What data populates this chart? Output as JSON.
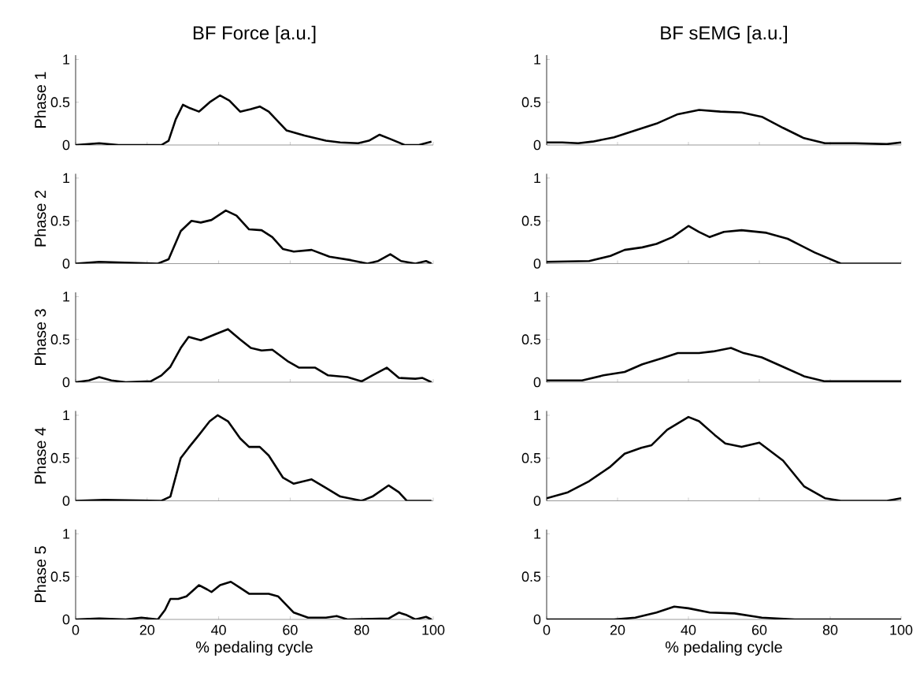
{
  "chart_data": [
    {
      "type": "line",
      "title": "BF Force [a.u.]",
      "ylabel": "Phase 1",
      "color": "#000000",
      "xlim": [
        0,
        100
      ],
      "ylim": [
        0,
        1.05
      ],
      "yticks": [
        0,
        0.5,
        1
      ],
      "tick_labels": "y",
      "x": [
        0,
        6.6,
        12,
        24,
        26,
        28,
        30,
        32,
        34.5,
        37.5,
        40.4,
        43,
        46,
        49,
        51.5,
        54,
        59,
        64,
        70,
        74,
        79,
        82,
        85,
        88,
        92,
        96,
        99.5
      ],
      "values": [
        0,
        0.02,
        0,
        0,
        0.05,
        0.3,
        0.47,
        0.43,
        0.39,
        0.5,
        0.58,
        0.52,
        0.39,
        0.42,
        0.45,
        0.39,
        0.17,
        0.11,
        0.05,
        0.03,
        0.02,
        0.05,
        0.12,
        0.07,
        0,
        0,
        0.04
      ]
    },
    {
      "type": "line",
      "title": "BF sEMG [a.u.]",
      "color": "#000000",
      "xlim": [
        0,
        100
      ],
      "ylim": [
        0,
        1.05
      ],
      "yticks": [
        0,
        0.5,
        1
      ],
      "tick_labels": "y",
      "x": [
        0,
        4.4,
        8.9,
        13,
        19,
        25,
        31,
        37,
        43,
        49,
        55,
        60.7,
        66.7,
        72.6,
        78.5,
        87,
        96,
        100
      ],
      "values": [
        0.03,
        0.03,
        0.02,
        0.04,
        0.09,
        0.17,
        0.25,
        0.36,
        0.41,
        0.39,
        0.38,
        0.33,
        0.2,
        0.08,
        0.02,
        0.02,
        0.01,
        0.03
      ]
    },
    {
      "type": "line",
      "ylabel": "Phase 2",
      "color": "#000000",
      "xlim": [
        0,
        100
      ],
      "ylim": [
        0,
        1.05
      ],
      "yticks": [
        0,
        0.5,
        1
      ],
      "tick_labels": "y",
      "x": [
        0,
        6.6,
        23,
        26,
        29.4,
        32.4,
        35,
        38,
        42,
        45,
        48.5,
        52,
        55,
        58,
        61,
        66,
        71,
        77,
        81.6,
        84.6,
        88,
        91,
        95,
        98,
        99.5
      ],
      "values": [
        0,
        0.02,
        0,
        0.05,
        0.38,
        0.5,
        0.48,
        0.51,
        0.62,
        0.56,
        0.4,
        0.39,
        0.31,
        0.17,
        0.14,
        0.16,
        0.08,
        0.04,
        0,
        0.03,
        0.11,
        0.03,
        0,
        0.03,
        0
      ]
    },
    {
      "type": "line",
      "color": "#000000",
      "xlim": [
        0,
        100
      ],
      "ylim": [
        0,
        1.05
      ],
      "yticks": [
        0,
        0.5,
        1
      ],
      "tick_labels": "y",
      "x": [
        0,
        12,
        18,
        22,
        27,
        31,
        35.5,
        40,
        43,
        46,
        50,
        55,
        62,
        68,
        75.6,
        83,
        100
      ],
      "values": [
        0.02,
        0.03,
        0.09,
        0.16,
        0.19,
        0.23,
        0.31,
        0.44,
        0.37,
        0.31,
        0.37,
        0.39,
        0.36,
        0.29,
        0.13,
        0,
        0
      ]
    },
    {
      "type": "line",
      "ylabel": "Phase 3",
      "color": "#000000",
      "xlim": [
        0,
        100
      ],
      "ylim": [
        0,
        1.05
      ],
      "yticks": [
        0,
        0.5,
        1
      ],
      "tick_labels": "y",
      "x": [
        0,
        3.7,
        6.6,
        10,
        14,
        21,
        24,
        26.5,
        29.4,
        31.6,
        35,
        39,
        42.6,
        46,
        49,
        52,
        55,
        59.5,
        62.5,
        67,
        70.6,
        76,
        80,
        83,
        87,
        90.4,
        95,
        97,
        99.5
      ],
      "values": [
        0,
        0.02,
        0.06,
        0.02,
        0,
        0.01,
        0.08,
        0.18,
        0.4,
        0.53,
        0.49,
        0.56,
        0.62,
        0.5,
        0.4,
        0.37,
        0.38,
        0.24,
        0.17,
        0.17,
        0.08,
        0.06,
        0.01,
        0.08,
        0.17,
        0.05,
        0.04,
        0.05,
        0
      ]
    },
    {
      "type": "line",
      "color": "#000000",
      "xlim": [
        0,
        100
      ],
      "ylim": [
        0,
        1.05
      ],
      "yticks": [
        0,
        0.5,
        1
      ],
      "tick_labels": "y",
      "x": [
        0,
        10,
        16,
        22,
        27,
        32.6,
        37,
        43,
        47,
        52,
        55.6,
        60.7,
        66.7,
        72.6,
        78.5,
        90,
        100
      ],
      "values": [
        0.02,
        0.02,
        0.08,
        0.12,
        0.21,
        0.28,
        0.34,
        0.34,
        0.36,
        0.4,
        0.34,
        0.29,
        0.18,
        0.07,
        0.01,
        0.01,
        0.01
      ]
    },
    {
      "type": "line",
      "ylabel": "Phase 4",
      "color": "#000000",
      "xlim": [
        0,
        100
      ],
      "ylim": [
        0,
        1.05
      ],
      "yticks": [
        0,
        0.5,
        1
      ],
      "tick_labels": "y",
      "x": [
        0,
        8,
        24,
        26.5,
        29.4,
        31.6,
        34.5,
        37.5,
        39.7,
        42.6,
        46,
        48.5,
        51.5,
        54,
        58,
        61,
        66,
        70,
        74,
        80,
        83,
        87.5,
        90.4,
        92.6,
        99.5
      ],
      "values": [
        0,
        0.01,
        0,
        0.05,
        0.5,
        0.62,
        0.77,
        0.93,
        1,
        0.93,
        0.73,
        0.63,
        0.63,
        0.53,
        0.27,
        0.2,
        0.25,
        0.15,
        0.05,
        0,
        0.05,
        0.18,
        0.1,
        0,
        0
      ]
    },
    {
      "type": "line",
      "color": "#000000",
      "xlim": [
        0,
        100
      ],
      "ylim": [
        0,
        1.05
      ],
      "yticks": [
        0,
        0.5,
        1
      ],
      "tick_labels": "y",
      "x": [
        0,
        6,
        12,
        18,
        22,
        26.7,
        29.6,
        34,
        40,
        43,
        47.4,
        50.4,
        55,
        60,
        66.7,
        72.6,
        78.5,
        83,
        96,
        100
      ],
      "values": [
        0.03,
        0.1,
        0.23,
        0.4,
        0.55,
        0.62,
        0.65,
        0.83,
        0.98,
        0.93,
        0.77,
        0.67,
        0.63,
        0.68,
        0.47,
        0.17,
        0.03,
        0,
        0,
        0.03
      ]
    },
    {
      "type": "line",
      "ylabel": "Phase 5",
      "xlabel": "% pedaling cycle",
      "color": "#000000",
      "xlim": [
        0,
        100
      ],
      "ylim": [
        0,
        1.05
      ],
      "xticks": [
        0,
        20,
        40,
        60,
        80,
        100
      ],
      "yticks": [
        0,
        0.5,
        1
      ],
      "x": [
        0,
        6.6,
        14,
        18.4,
        23,
        25,
        26.5,
        28.7,
        31,
        34.5,
        36.8,
        38,
        40.4,
        43.4,
        46,
        48.5,
        54,
        56.6,
        61,
        65,
        70,
        73,
        76,
        87.5,
        90.4,
        92.6,
        95,
        98,
        99.5
      ],
      "values": [
        0,
        0.01,
        0,
        0.02,
        0,
        0.11,
        0.24,
        0.24,
        0.27,
        0.4,
        0.35,
        0.32,
        0.4,
        0.44,
        0.37,
        0.3,
        0.3,
        0.27,
        0.08,
        0.02,
        0.02,
        0.04,
        0,
        0.01,
        0.08,
        0.05,
        0,
        0.03,
        0
      ]
    },
    {
      "type": "line",
      "xlabel": "% pedaling cycle",
      "color": "#000000",
      "xlim": [
        0,
        100
      ],
      "ylim": [
        0,
        1.05
      ],
      "xticks": [
        0,
        20,
        40,
        60,
        80,
        100
      ],
      "yticks": [
        0,
        0.5,
        1
      ],
      "x": [
        0,
        19,
        25,
        31,
        36,
        40,
        46,
        53,
        60.7,
        70,
        100
      ],
      "values": [
        0,
        0,
        0.02,
        0.08,
        0.15,
        0.13,
        0.08,
        0.07,
        0.02,
        0,
        0
      ]
    }
  ]
}
